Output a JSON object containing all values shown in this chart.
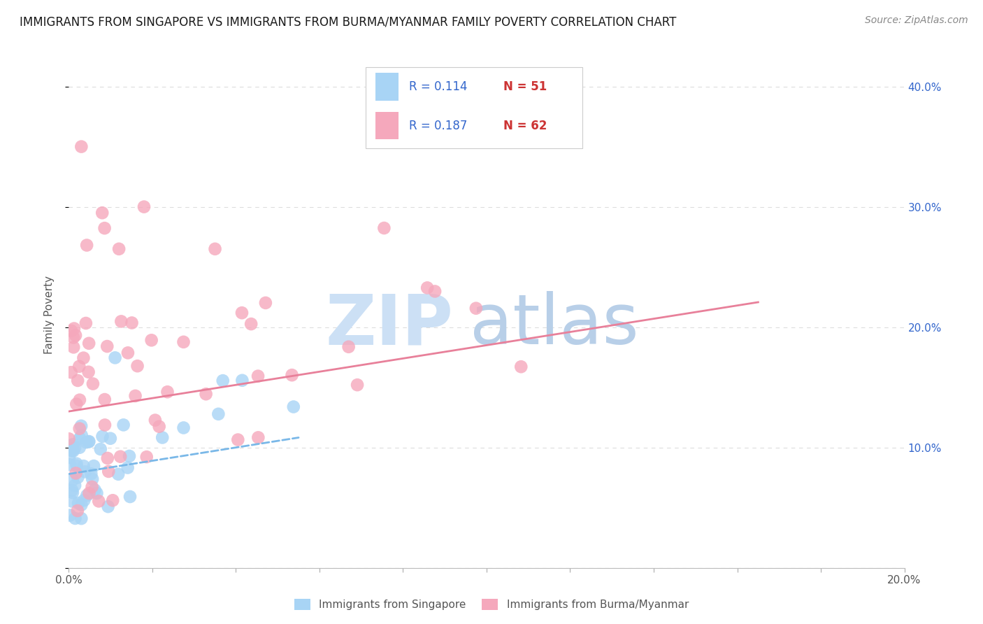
{
  "title": "IMMIGRANTS FROM SINGAPORE VS IMMIGRANTS FROM BURMA/MYANMAR FAMILY POVERTY CORRELATION CHART",
  "source": "Source: ZipAtlas.com",
  "ylabel": "Family Poverty",
  "xlim": [
    0.0,
    0.2
  ],
  "ylim": [
    0.0,
    0.42
  ],
  "color_singapore": "#a8d4f5",
  "color_burma": "#f5a8bc",
  "color_singapore_line": "#7ab8e8",
  "color_burma_line": "#e8809a",
  "color_r_text": "#3366cc",
  "color_n_text": "#cc3333",
  "watermark_zip": "ZIP",
  "watermark_atlas": "atlas",
  "watermark_color_zip": "#c8def5",
  "watermark_color_atlas": "#b8d0e8",
  "background_color": "#ffffff",
  "grid_color": "#dddddd",
  "legend_r1": "R = 0.114",
  "legend_n1": "N = 51",
  "legend_r2": "R = 0.187",
  "legend_n2": "N = 62"
}
